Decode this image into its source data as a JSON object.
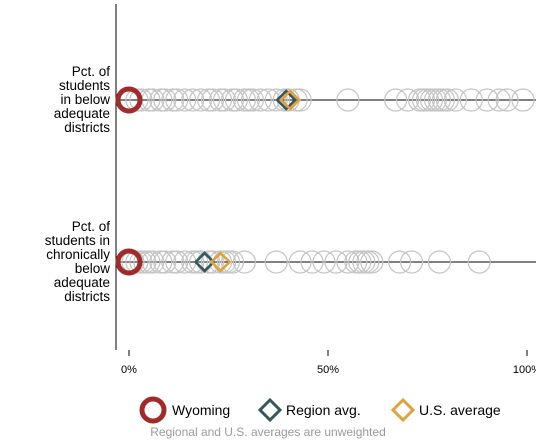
{
  "chart_data": {
    "type": "scatter",
    "xlim": [
      0,
      100
    ],
    "x_ticks": [
      {
        "value": 0,
        "label": "0%"
      },
      {
        "value": 50,
        "label": "50%"
      },
      {
        "value": 100,
        "label": "100%"
      }
    ],
    "rows": [
      {
        "label": "Pct. of students in below adequate districts",
        "label_lines": [
          "Pct. of",
          "students",
          "in below",
          "adequate",
          "districts"
        ],
        "states": [
          0,
          2,
          3,
          5,
          6,
          8,
          9,
          11,
          12,
          14,
          16,
          18,
          20,
          21,
          23,
          24,
          26,
          27,
          29,
          30,
          31,
          33,
          35,
          37,
          39,
          40,
          42,
          43,
          55,
          67,
          70,
          73,
          74,
          75,
          76,
          77,
          78,
          79,
          80,
          82,
          86,
          90,
          93,
          95,
          99
        ],
        "highlight": 0,
        "region_avg": 39.5,
        "us_avg": 40.5
      },
      {
        "label": "Pct. of students in chronically below adequate districts",
        "label_lines": [
          "Pct. of",
          "students in",
          "chronically",
          "below",
          "adequate",
          "districts"
        ],
        "states": [
          0,
          1,
          2,
          3,
          4,
          5,
          6,
          8,
          9,
          11,
          12,
          14,
          16,
          17,
          18,
          20,
          21,
          23,
          24,
          25,
          26,
          29,
          37,
          43,
          46,
          49,
          52,
          55,
          57,
          58,
          59,
          60,
          61,
          68,
          71,
          78,
          88
        ],
        "highlight": 0,
        "region_avg": 19,
        "us_avg": 23
      }
    ],
    "legend": {
      "placement": "bottom",
      "items": [
        {
          "label": "Wyoming",
          "marker": "circle",
          "color": "#a12a2a"
        },
        {
          "label": "Region avg.",
          "marker": "diamond",
          "color": "#34575e"
        },
        {
          "label": "U.S. average",
          "marker": "diamond",
          "color": "#e0a23c"
        }
      ]
    },
    "note": "Regional and U.S. averages are unweighted",
    "colors": {
      "other_states": "#c4c4c4",
      "highlight": "#a12a2a",
      "region": "#34575e",
      "us": "#e0a23c",
      "note": "#9a9a9a"
    }
  }
}
